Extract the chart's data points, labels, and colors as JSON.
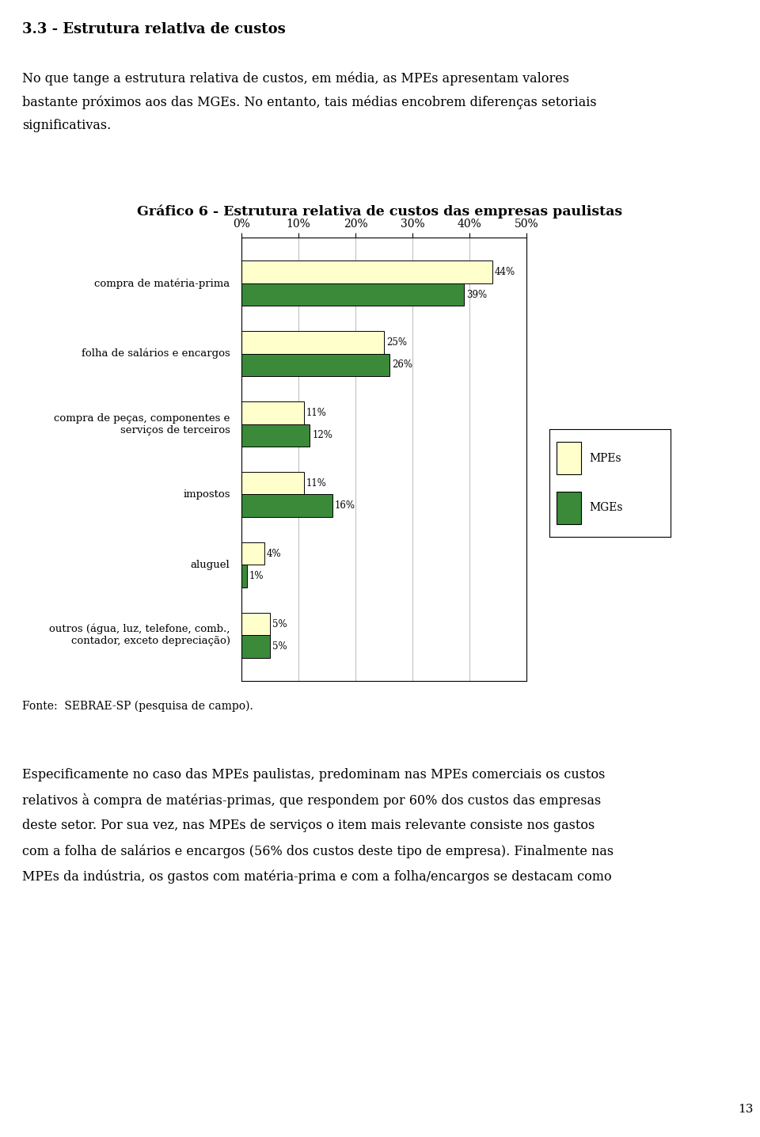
{
  "title": "Gráfico 6 - Estrutura relativa de custos das empresas paulistas",
  "cat_labels": [
    "compra de matéria-prima",
    "folha de salários e encargos",
    "compra de peças, componentes e\n    serviços de terceiros",
    "impostos",
    "aluguel",
    "outros (água, luz, telefone, comb.,\n    contador, exceto depreciação)"
  ],
  "mpe_values": [
    44,
    25,
    11,
    11,
    4,
    5
  ],
  "mge_values": [
    39,
    26,
    12,
    16,
    1,
    5
  ],
  "mpe_color": "#FFFFCC",
  "mge_color": "#3A8A3A",
  "bar_edge_color": "#000000",
  "xtick_labels": [
    "0%",
    "10%",
    "20%",
    "30%",
    "40%",
    "50%"
  ],
  "xtick_values": [
    0,
    10,
    20,
    30,
    40,
    50
  ],
  "grid_color": "#BBBBBB",
  "source_text": "Fonte:  SEBRAE-SP (pesquisa de campo).",
  "heading": "3.3 - Estrutura relativa de custos",
  "para1_lines": [
    "No que tange a estrutura relativa de custos, em média, as MPEs apresentam valores",
    "bastante próximos aos das MGEs. No entanto, tais médias encobrem diferenças setoriais",
    "significativas."
  ],
  "para2_lines": [
    "Especificamente no caso das MPEs paulistas, predominam nas MPEs comerciais os custos",
    "relativos à compra de matérias-primas, que respondem por 60% dos custos das empresas",
    "deste setor. Por sua vez, nas MPEs de serviços o item mais relevante consiste nos gastos",
    "com a folha de salários e encargos (56% dos custos deste tipo de empresa). Finalmente nas",
    "MPEs da indústria, os gastos com matéria-prima e com a folha/encargos se destacam como"
  ],
  "page_number": "13",
  "background_color": "#FFFFFF",
  "text_color": "#000000",
  "border_color": "#000000"
}
